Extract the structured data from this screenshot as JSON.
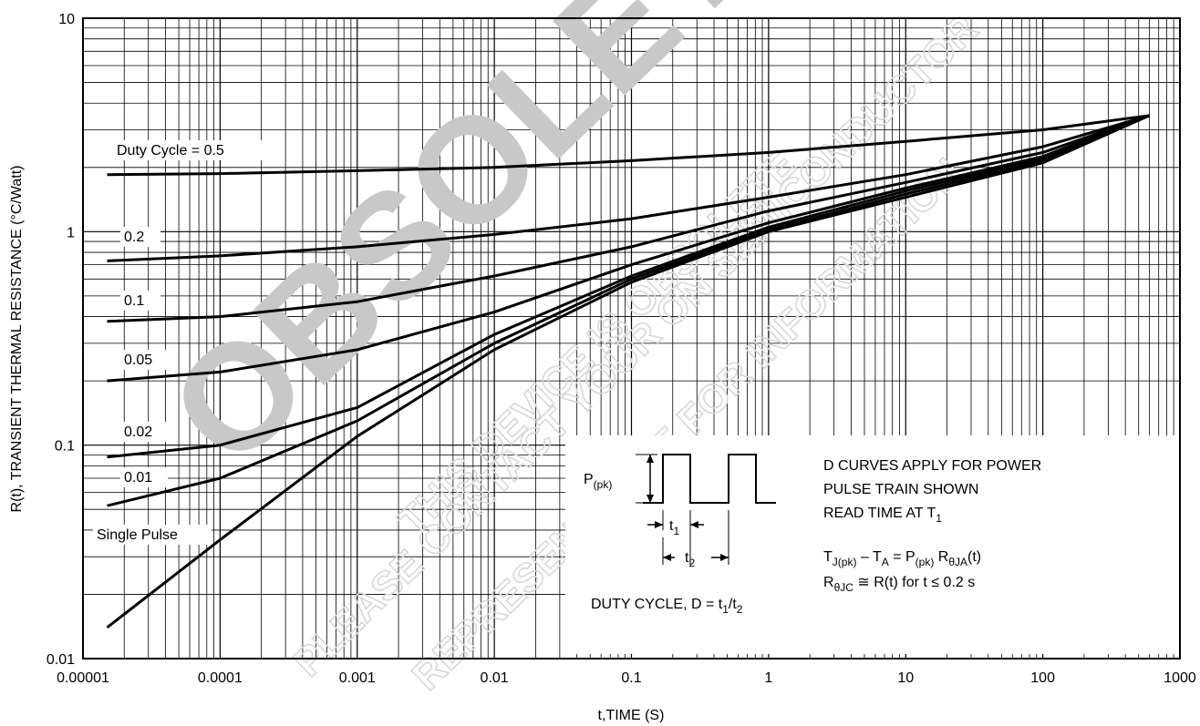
{
  "chart_data": {
    "type": "line",
    "xlabel": "t,TIME (S)",
    "ylabel": "R(t), TRANSIENT THERMAL RESISTANCE (°C/Watt)",
    "x_scale": "log",
    "y_scale": "log",
    "xlim": [
      1e-05,
      1000
    ],
    "ylim": [
      0.01,
      10
    ],
    "grid": true,
    "x_ticks": [
      "0.00001",
      "0.0001",
      "0.001",
      "0.01",
      "0.1",
      "1",
      "10",
      "100",
      "1000"
    ],
    "y_ticks": [
      "0.01",
      "0.1",
      "1",
      "10"
    ],
    "series": [
      {
        "name": "Duty Cycle = 0.5",
        "x": [
          1.5e-05,
          0.0001,
          0.001,
          0.01,
          0.1,
          1,
          10,
          100,
          600
        ],
        "y": [
          1.85,
          1.87,
          1.93,
          2.0,
          2.15,
          2.35,
          2.65,
          3.0,
          3.5
        ]
      },
      {
        "name": "0.2",
        "x": [
          1.5e-05,
          0.0001,
          0.001,
          0.01,
          0.1,
          1,
          10,
          100,
          600
        ],
        "y": [
          0.73,
          0.77,
          0.85,
          0.97,
          1.15,
          1.45,
          1.85,
          2.5,
          3.5
        ]
      },
      {
        "name": "0.1",
        "x": [
          1.5e-05,
          0.0001,
          0.001,
          0.01,
          0.1,
          1,
          10,
          100,
          600
        ],
        "y": [
          0.38,
          0.4,
          0.47,
          0.62,
          0.85,
          1.25,
          1.7,
          2.35,
          3.5
        ]
      },
      {
        "name": "0.05",
        "x": [
          1.5e-05,
          0.0001,
          0.001,
          0.01,
          0.1,
          1,
          10,
          100,
          600
        ],
        "y": [
          0.2,
          0.22,
          0.28,
          0.42,
          0.7,
          1.1,
          1.6,
          2.25,
          3.5
        ]
      },
      {
        "name": "0.02",
        "x": [
          1.5e-05,
          0.0001,
          0.001,
          0.01,
          0.1,
          1,
          10,
          100,
          600
        ],
        "y": [
          0.088,
          0.1,
          0.15,
          0.33,
          0.62,
          1.05,
          1.55,
          2.2,
          3.5
        ]
      },
      {
        "name": "0.01",
        "x": [
          1.5e-05,
          0.0001,
          0.001,
          0.01,
          0.1,
          1,
          10,
          100,
          600
        ],
        "y": [
          0.052,
          0.07,
          0.13,
          0.3,
          0.6,
          1.02,
          1.5,
          2.15,
          3.5
        ]
      },
      {
        "name": "Single Pulse",
        "x": [
          1.5e-05,
          0.0001,
          0.001,
          0.01,
          0.1,
          1,
          10,
          100,
          600
        ],
        "y": [
          0.014,
          0.036,
          0.11,
          0.28,
          0.58,
          1.0,
          1.45,
          2.1,
          3.5
        ]
      }
    ]
  },
  "inset": {
    "ppk_label": "P",
    "ppk_sub": "(pk)",
    "t1_label": "t",
    "t1_sub": "1",
    "t2_label": "t",
    "t2_sub": "2",
    "duty_prefix": "DUTY CYCLE, D = t",
    "duty_sub1": "1",
    "duty_mid": "/t",
    "duty_sub2": "2",
    "note_line1": "D CURVES APPLY FOR POWER",
    "note_line2": "PULSE TRAIN SHOWN",
    "note_line3_prefix": "READ TIME AT T",
    "note_line3_sub": "1",
    "eq1_a": "T",
    "eq1_a_sub": "J(pk)",
    "eq1_b": " – T",
    "eq1_b_sub": "A",
    "eq1_c": " = P",
    "eq1_c_sub": "(pk)",
    "eq1_d": " R",
    "eq1_d_sub": "θJA",
    "eq1_e": "(t)",
    "eq2_a": "R",
    "eq2_a_sub": "θJC",
    "eq2_b": " ≅ R(t) for t ≤ 0.2 s"
  },
  "watermark": {
    "big": "OBSOLETE",
    "line1": "THIS DEVICE IS OBSOLETE",
    "line2": "PLEASE CONTACT YOUR ON SEMICONDUCTOR",
    "line3": "REPRESENTATIVE FOR INFORMATION"
  },
  "colors": {
    "line": "#000000",
    "watermark": "#c8c8c8",
    "watermark_light": "#d8d8d8"
  }
}
